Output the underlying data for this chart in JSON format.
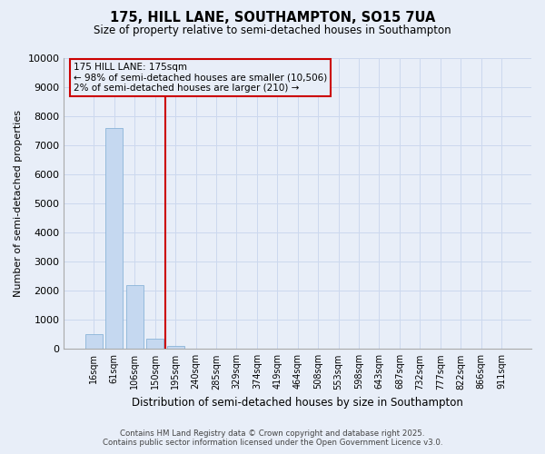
{
  "title_line1": "175, HILL LANE, SOUTHAMPTON, SO15 7UA",
  "title_line2": "Size of property relative to semi-detached houses in Southampton",
  "xlabel": "Distribution of semi-detached houses by size in Southampton",
  "ylabel": "Number of semi-detached properties",
  "categories": [
    "16sqm",
    "61sqm",
    "106sqm",
    "150sqm",
    "195sqm",
    "240sqm",
    "285sqm",
    "329sqm",
    "374sqm",
    "419sqm",
    "464sqm",
    "508sqm",
    "553sqm",
    "598sqm",
    "643sqm",
    "687sqm",
    "732sqm",
    "777sqm",
    "822sqm",
    "866sqm",
    "911sqm"
  ],
  "values": [
    500,
    7600,
    2200,
    350,
    100,
    0,
    0,
    0,
    0,
    0,
    0,
    0,
    0,
    0,
    0,
    0,
    0,
    0,
    0,
    0,
    0
  ],
  "bar_color": "#c5d8f0",
  "bar_edge_color": "#8ab4d8",
  "vline_x": 3.5,
  "vline_color": "#cc0000",
  "ylim": [
    0,
    10000
  ],
  "yticks": [
    0,
    1000,
    2000,
    3000,
    4000,
    5000,
    6000,
    7000,
    8000,
    9000,
    10000
  ],
  "annotation_title": "175 HILL LANE: 175sqm",
  "annotation_line1": "← 98% of semi-detached houses are smaller (10,506)",
  "annotation_line2": "2% of semi-detached houses are larger (210) →",
  "annotation_box_color": "#cc0000",
  "grid_color": "#ccd8ee",
  "bg_color": "#e8eef8",
  "footer_line1": "Contains HM Land Registry data © Crown copyright and database right 2025.",
  "footer_line2": "Contains public sector information licensed under the Open Government Licence v3.0."
}
